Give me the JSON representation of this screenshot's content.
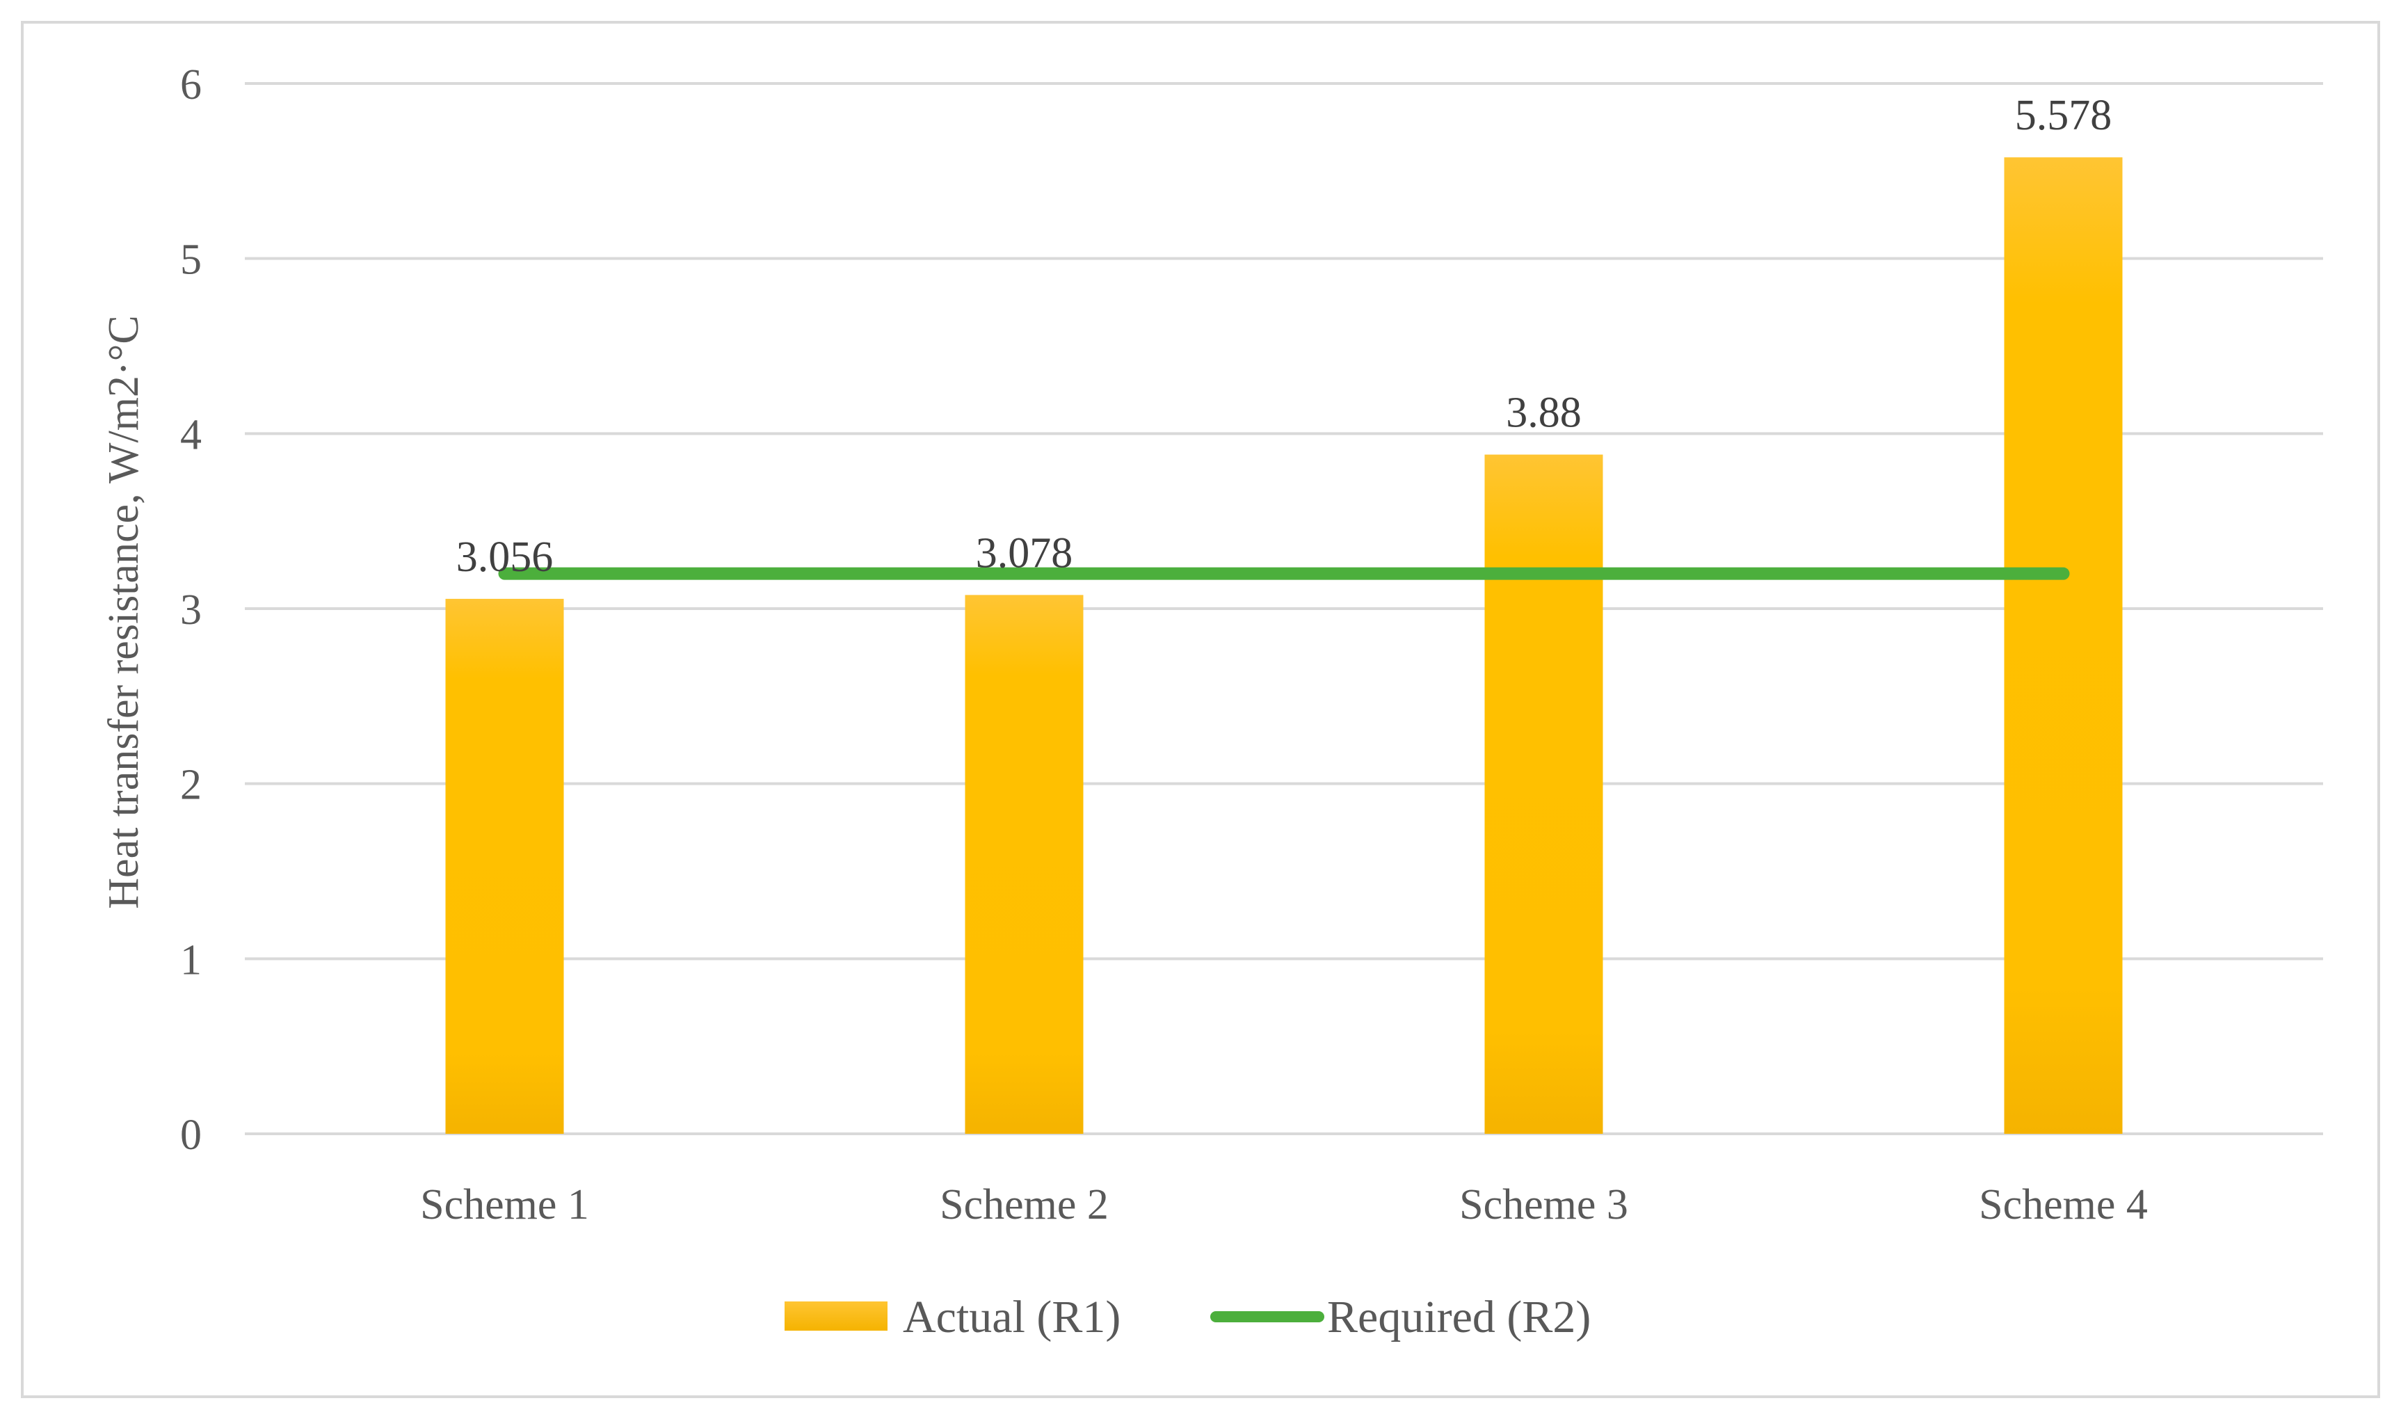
{
  "chart_data": {
    "type": "bar",
    "categories": [
      "Scheme 1",
      "Scheme 2",
      "Scheme 3",
      "Scheme 4"
    ],
    "series": [
      {
        "name": "Actual (R1)",
        "kind": "bar",
        "color": "#FFC000",
        "values": [
          3.056,
          3.078,
          3.88,
          5.578
        ]
      },
      {
        "name": "Required (R2)",
        "kind": "line",
        "color": "#4CAF3C",
        "values": [
          3.2,
          3.2,
          3.2,
          3.2
        ]
      }
    ],
    "data_labels": [
      "3.056",
      "3.078",
      "3.88",
      "5.578"
    ],
    "title": "",
    "xlabel": "",
    "ylabel": "Heat transfer resistance, W/m2·°C",
    "ylim": [
      0,
      6
    ],
    "yticks": [
      0,
      1,
      2,
      3,
      4,
      5,
      6
    ],
    "grid": "horizontal",
    "legend_position": "bottom"
  }
}
